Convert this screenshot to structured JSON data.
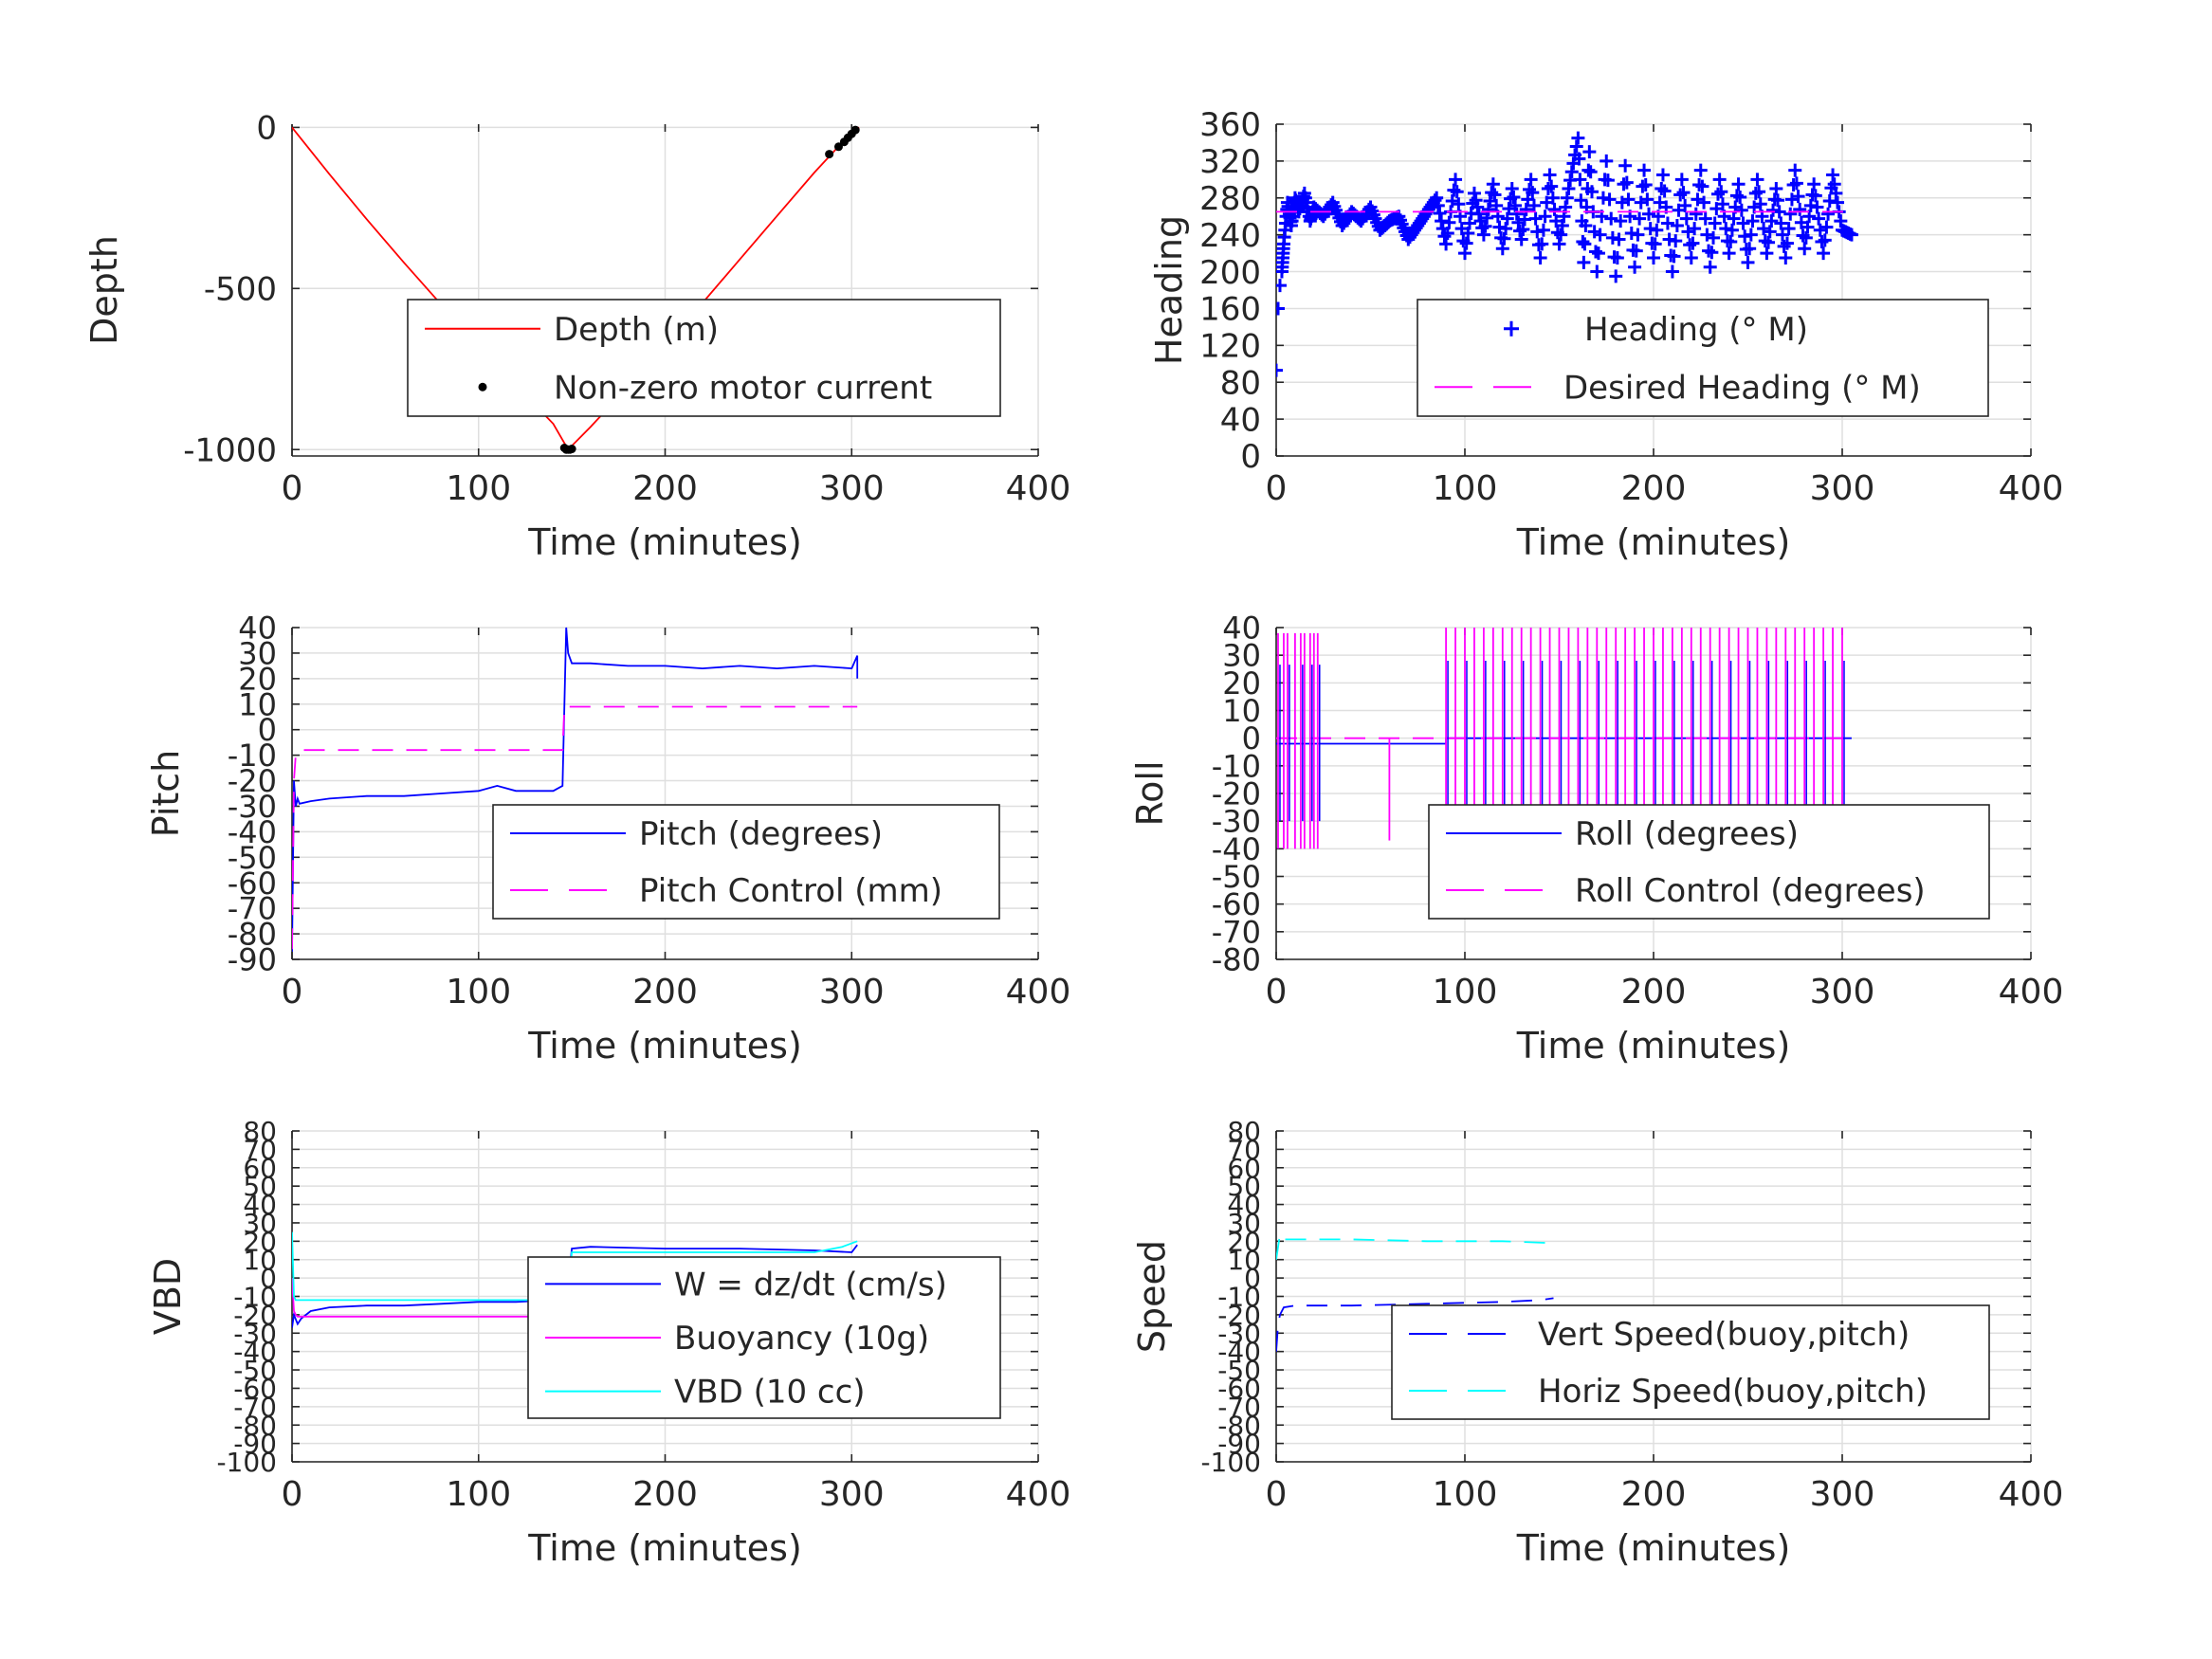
{
  "chart_data": [
    {
      "id": "depth",
      "type": "line",
      "xlabel": "Time (minutes)",
      "ylabel": "Depth",
      "xlim": [
        0,
        400
      ],
      "ylim": [
        -1020,
        10
      ],
      "xticks": [
        0,
        100,
        200,
        300,
        400
      ],
      "yticks": [
        0,
        -500,
        -1000
      ],
      "grid": true,
      "legend_position": "lower-right",
      "series": [
        {
          "name": "Depth (m)",
          "style": "line",
          "color": "#ff0000",
          "x": [
            0,
            20,
            40,
            60,
            80,
            100,
            120,
            140,
            148,
            160,
            180,
            200,
            220,
            240,
            260,
            280,
            300,
            304
          ],
          "y": [
            0,
            -145,
            -285,
            -420,
            -550,
            -675,
            -800,
            -920,
            -1000,
            -930,
            -805,
            -675,
            -545,
            -410,
            -275,
            -140,
            -15,
            0
          ]
        },
        {
          "name": "Non-zero motor current",
          "style": "dot",
          "color": "#000000",
          "x": [
            146,
            147,
            148,
            149,
            150,
            288,
            293,
            296,
            298,
            300,
            302
          ],
          "y": [
            -995,
            -1000,
            -1000,
            -1000,
            -998,
            -83,
            -60,
            -45,
            -32,
            -20,
            -8
          ]
        }
      ]
    },
    {
      "id": "heading",
      "type": "scatter",
      "xlabel": "Time (minutes)",
      "ylabel": "Heading",
      "xlim": [
        0,
        400
      ],
      "ylim": [
        0,
        360
      ],
      "xticks": [
        0,
        100,
        200,
        300,
        400
      ],
      "yticks": [
        0,
        40,
        80,
        120,
        160,
        200,
        240,
        280,
        320,
        360
      ],
      "grid": true,
      "legend_position": "lower-right",
      "series": [
        {
          "name": "Heading (° M)",
          "style": "plus",
          "color": "#0000ff",
          "x": [
            0,
            1,
            2,
            3,
            4,
            6,
            8,
            10,
            12,
            15,
            18,
            20,
            25,
            30,
            35,
            40,
            45,
            50,
            55,
            60,
            65,
            70,
            75,
            80,
            85,
            90,
            95,
            100,
            105,
            110,
            115,
            120,
            125,
            130,
            135,
            140,
            145,
            150,
            155,
            160,
            163,
            166,
            170,
            175,
            180,
            185,
            190,
            195,
            200,
            205,
            210,
            215,
            220,
            225,
            230,
            235,
            240,
            245,
            250,
            255,
            260,
            265,
            270,
            275,
            280,
            285,
            290,
            295,
            300,
            305
          ],
          "y": [
            93,
            160,
            185,
            200,
            230,
            275,
            250,
            280,
            265,
            285,
            255,
            270,
            260,
            275,
            250,
            265,
            255,
            270,
            245,
            255,
            260,
            235,
            250,
            265,
            280,
            230,
            300,
            220,
            285,
            240,
            295,
            225,
            290,
            235,
            300,
            215,
            305,
            230,
            290,
            345,
            210,
            330,
            200,
            320,
            195,
            315,
            205,
            310,
            215,
            305,
            200,
            300,
            215,
            310,
            205,
            300,
            220,
            295,
            210,
            300,
            220,
            290,
            215,
            310,
            225,
            295,
            220,
            305,
            245,
            240
          ]
        },
        {
          "name": "Desired Heading (° M)",
          "style": "dash",
          "color": "#ff00ff",
          "x": [
            0,
            305
          ],
          "y": [
            265,
            265
          ]
        }
      ]
    },
    {
      "id": "pitch",
      "type": "line",
      "xlabel": "Time (minutes)",
      "ylabel": "Pitch",
      "xlim": [
        0,
        400
      ],
      "ylim": [
        -90,
        40
      ],
      "xticks": [
        0,
        100,
        200,
        300,
        400
      ],
      "yticks": [
        40,
        30,
        20,
        10,
        0,
        -10,
        -20,
        -30,
        -40,
        -50,
        -60,
        -70,
        -80,
        -90
      ],
      "grid": true,
      "legend_position": "lower-right",
      "series": [
        {
          "name": "Pitch (degrees)",
          "style": "line",
          "color": "#0000ff",
          "x": [
            0,
            1,
            2,
            3,
            4,
            10,
            20,
            40,
            60,
            80,
            100,
            110,
            120,
            140,
            145,
            146,
            147,
            148,
            150,
            160,
            180,
            200,
            220,
            240,
            260,
            280,
            300,
            303,
            303
          ],
          "y": [
            -87,
            -20,
            -30,
            -27,
            -29,
            -28,
            -27,
            -26,
            -26,
            -25,
            -24,
            -22,
            -24,
            -24,
            -22,
            10,
            40,
            30,
            26,
            26,
            25,
            25,
            24,
            25,
            24,
            25,
            24,
            29,
            20
          ]
        },
        {
          "name": "Pitch Control (mm)",
          "style": "dash",
          "color": "#ff00ff",
          "x": [
            0,
            1,
            2,
            4,
            140,
            145,
            146,
            148,
            300,
            303
          ],
          "y": [
            -86,
            -20,
            -10,
            -8,
            -8,
            -8,
            9,
            9,
            9,
            9
          ]
        }
      ]
    },
    {
      "id": "roll",
      "type": "line",
      "xlabel": "Time (minutes)",
      "ylabel": "Roll",
      "xlim": [
        0,
        400
      ],
      "ylim": [
        -80,
        40
      ],
      "xticks": [
        0,
        100,
        200,
        300,
        400
      ],
      "yticks": [
        40,
        30,
        20,
        10,
        0,
        -10,
        -20,
        -30,
        -40,
        -50,
        -60,
        -70,
        -80
      ],
      "grid": true,
      "legend_position": "lower-right",
      "series": [
        {
          "name": "Roll (degrees)",
          "style": "line",
          "color": "#0000ff",
          "baseline": -2,
          "x": [
            0,
            90,
            90,
            305
          ],
          "y": [
            -2,
            -2,
            0,
            0
          ]
        },
        {
          "name": "Roll Control (degrees)",
          "style": "dash",
          "color": "#ff00ff",
          "baseline": 0,
          "x": [
            0,
            300
          ],
          "y": [
            0,
            0
          ]
        }
      ]
    },
    {
      "id": "vbd",
      "type": "line",
      "xlabel": "Time (minutes)",
      "ylabel": "VBD",
      "xlim": [
        0,
        400
      ],
      "ylim": [
        -100,
        80
      ],
      "xticks": [
        0,
        100,
        200,
        300,
        400
      ],
      "yticks": [
        80,
        70,
        60,
        50,
        40,
        30,
        20,
        10,
        0,
        -10,
        -20,
        -30,
        -40,
        -50,
        -60,
        -70,
        -80,
        -90,
        -100
      ],
      "grid": true,
      "legend_position": "lower-right",
      "series": [
        {
          "name": "W = dz/dt (cm/s)",
          "style": "line",
          "color": "#0000ff",
          "x": [
            0,
            1,
            3,
            5,
            10,
            20,
            40,
            60,
            80,
            100,
            120,
            140,
            145,
            148,
            150,
            160,
            200,
            240,
            280,
            300,
            303
          ],
          "y": [
            -27,
            -20,
            -25,
            -22,
            -18,
            -16,
            -15,
            -15,
            -14,
            -13,
            -13,
            -12,
            -13,
            -5,
            16,
            17,
            16,
            16,
            15,
            14,
            18
          ]
        },
        {
          "name": "Buoyancy (10g)",
          "style": "line",
          "color": "#ff00ff",
          "x": [
            0,
            1,
            2,
            3,
            303
          ],
          "y": [
            0,
            -18,
            -20,
            -21,
            -21
          ]
        },
        {
          "name": "VBD (10 cc)",
          "style": "line",
          "color": "#00ffff",
          "x": [
            0,
            1,
            2,
            4,
            140,
            148,
            150,
            200,
            280,
            295,
            303
          ],
          "y": [
            25,
            -10,
            -12,
            -12,
            -12,
            -10,
            14,
            14,
            14,
            17,
            20
          ]
        }
      ]
    },
    {
      "id": "speed",
      "type": "line",
      "xlabel": "Time (minutes)",
      "ylabel": "Speed",
      "xlim": [
        0,
        400
      ],
      "ylim": [
        -100,
        80
      ],
      "xticks": [
        0,
        100,
        200,
        300,
        400
      ],
      "yticks": [
        80,
        70,
        60,
        50,
        40,
        30,
        20,
        10,
        0,
        -10,
        -20,
        -30,
        -40,
        -50,
        -60,
        -70,
        -80,
        -90,
        -100
      ],
      "grid": true,
      "legend_position": "lower-right",
      "series": [
        {
          "name": "Vert Speed(buoy,pitch)",
          "style": "dash",
          "color": "#0000ff",
          "x": [
            0,
            1,
            2,
            4,
            10,
            40,
            80,
            120,
            140,
            147
          ],
          "y": [
            -40,
            -25,
            -20,
            -16,
            -15,
            -15,
            -14,
            -13,
            -12,
            -11
          ]
        },
        {
          "name": "Horiz Speed(buoy,pitch)",
          "style": "dash",
          "color": "#00ffff",
          "x": [
            0,
            2,
            4,
            10,
            40,
            80,
            120,
            147
          ],
          "y": [
            10,
            24,
            21,
            21,
            21,
            20,
            20,
            19
          ]
        }
      ]
    }
  ]
}
